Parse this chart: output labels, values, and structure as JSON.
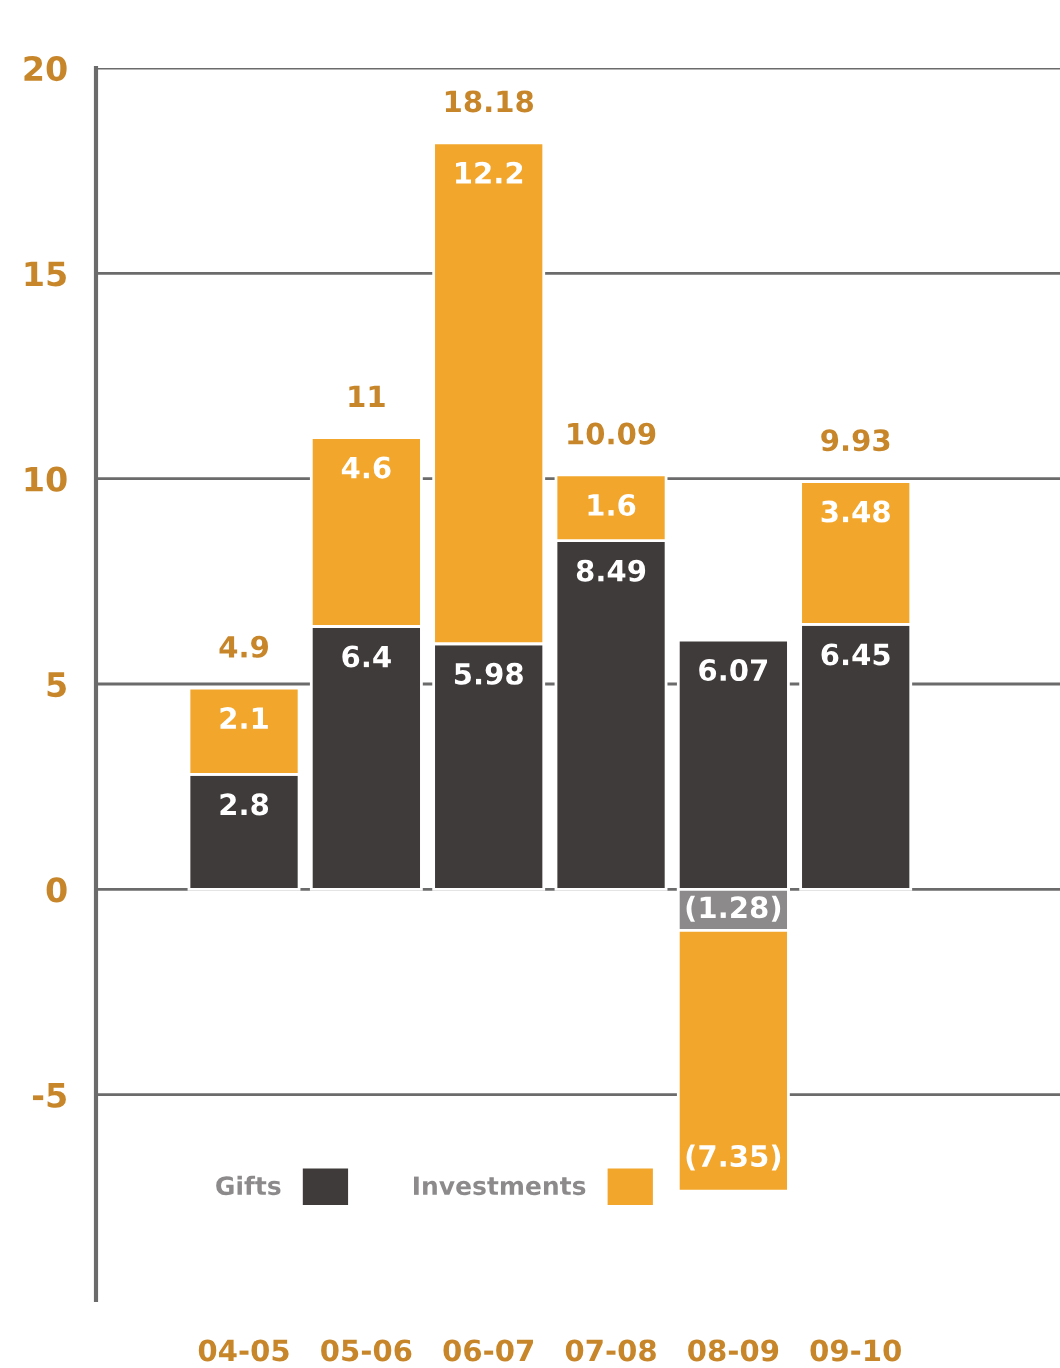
{
  "chart_data": {
    "type": "bar",
    "stacked": true,
    "categories": [
      "04-05",
      "05-06",
      "06-07",
      "07-08",
      "08-09",
      "09-10"
    ],
    "series": [
      {
        "name": "Gifts",
        "color": "#403b3b",
        "values": [
          2.8,
          6.4,
          5.98,
          8.49,
          6.07,
          6.45
        ],
        "value_labels": [
          "2.8",
          "6.4",
          "5.98",
          "8.49",
          "6.07",
          "6.45"
        ]
      },
      {
        "name": "Investments",
        "color": "#f2a62b",
        "values": [
          2.1,
          4.6,
          12.2,
          1.6,
          -7.35,
          3.48
        ],
        "value_labels": [
          "2.1",
          "4.6",
          "12.2",
          "1.6",
          "(7.35)",
          "3.48"
        ]
      }
    ],
    "totals": [
      "4.9",
      "11",
      "18.18",
      "10.09",
      "(1.28)",
      "9.93"
    ],
    "ylim": [
      -10,
      20
    ],
    "yticks": [
      -5,
      0,
      5,
      10,
      15,
      20
    ],
    "grid": "y",
    "legend": "bottom left"
  }
}
